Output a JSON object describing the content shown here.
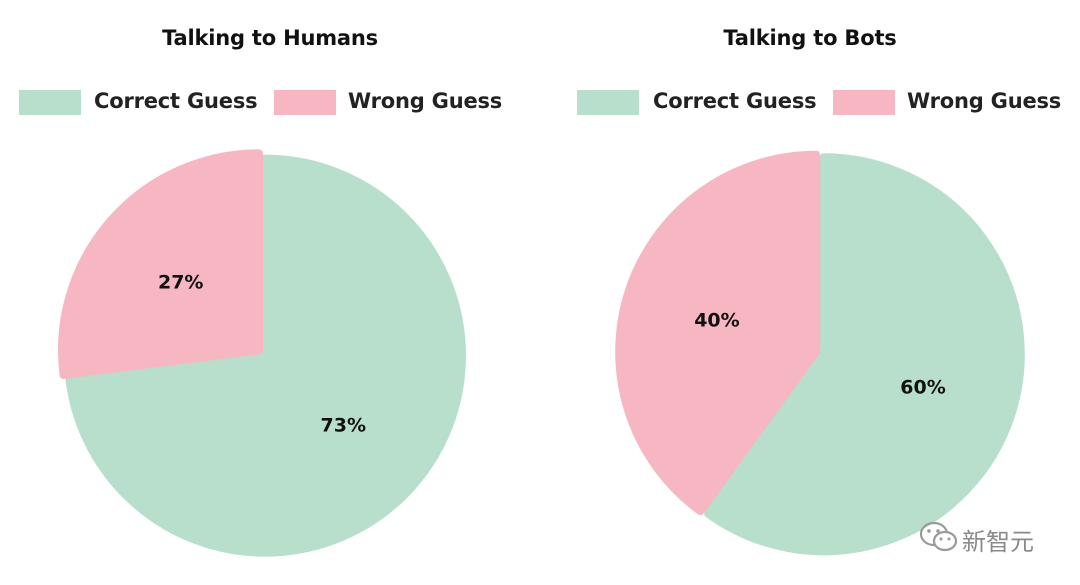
{
  "chart_data": [
    {
      "type": "pie",
      "title": "Talking to Humans",
      "legend": {
        "placement": "top",
        "entries": [
          "Correct Guess",
          "Wrong Guess"
        ]
      },
      "slices": [
        {
          "label": "Correct Guess",
          "value": 73,
          "value_label": "73%",
          "color": "#b8dfcb"
        },
        {
          "label": "Wrong Guess",
          "value": 27,
          "value_label": "27%",
          "color": "#f6b6c2"
        }
      ]
    },
    {
      "type": "pie",
      "title": "Talking to Bots",
      "legend": {
        "placement": "top",
        "entries": [
          "Correct Guess",
          "Wrong Guess"
        ]
      },
      "slices": [
        {
          "label": "Correct Guess",
          "value": 60,
          "value_label": "60%",
          "color": "#b8dfcb"
        },
        {
          "label": "Wrong Guess",
          "value": 40,
          "value_label": "40%",
          "color": "#f6b6c2"
        }
      ]
    }
  ],
  "watermark": {
    "text": "新智元",
    "icon": "wechat-icon"
  }
}
